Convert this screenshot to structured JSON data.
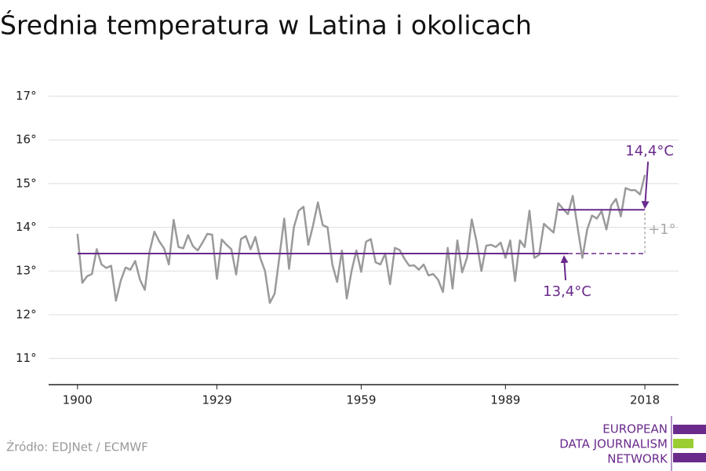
{
  "chart_data": {
    "type": "line",
    "title": "Średnia temperatura w Latina i okolicach",
    "x": [
      1900,
      1901,
      1902,
      1903,
      1904,
      1905,
      1906,
      1907,
      1908,
      1909,
      1910,
      1911,
      1912,
      1913,
      1914,
      1915,
      1916,
      1917,
      1918,
      1919,
      1920,
      1921,
      1922,
      1923,
      1924,
      1925,
      1926,
      1927,
      1928,
      1929,
      1930,
      1931,
      1932,
      1933,
      1934,
      1935,
      1936,
      1937,
      1938,
      1939,
      1940,
      1941,
      1942,
      1943,
      1944,
      1945,
      1946,
      1947,
      1948,
      1949,
      1950,
      1951,
      1952,
      1953,
      1954,
      1955,
      1956,
      1957,
      1958,
      1959,
      1960,
      1961,
      1962,
      1963,
      1964,
      1965,
      1966,
      1967,
      1968,
      1969,
      1970,
      1971,
      1972,
      1973,
      1974,
      1975,
      1976,
      1977,
      1978,
      1979,
      1980,
      1981,
      1982,
      1983,
      1984,
      1985,
      1986,
      1987,
      1988,
      1989,
      1990,
      1991,
      1992,
      1993,
      1994,
      1995,
      1996,
      1997,
      1998,
      1999,
      2000,
      2001,
      2002,
      2003,
      2004,
      2005,
      2006,
      2007,
      2008,
      2009,
      2010,
      2011,
      2012,
      2013,
      2014,
      2015,
      2016,
      2017,
      2018
    ],
    "series": [
      {
        "color": "#9a9a9a",
        "values": [
          13.85,
          12.73,
          12.88,
          12.93,
          13.5,
          13.15,
          13.07,
          13.12,
          12.32,
          12.78,
          13.08,
          13.03,
          13.23,
          12.8,
          12.57,
          13.45,
          13.9,
          13.68,
          13.52,
          13.15,
          14.17,
          13.55,
          13.52,
          13.82,
          13.57,
          13.47,
          13.65,
          13.85,
          13.83,
          12.82,
          13.72,
          13.6,
          13.5,
          12.92,
          13.73,
          13.8,
          13.5,
          13.78,
          13.3,
          13.0,
          12.27,
          12.48,
          13.33,
          14.2,
          13.05,
          14.0,
          14.38,
          14.47,
          13.6,
          14.05,
          14.57,
          14.05,
          14.0,
          13.15,
          12.75,
          13.47,
          12.37,
          13.0,
          13.47,
          12.98,
          13.67,
          13.73,
          13.2,
          13.15,
          13.4,
          12.7,
          13.53,
          13.48,
          13.28,
          13.12,
          13.13,
          13.03,
          13.15,
          12.9,
          12.93,
          12.8,
          12.52,
          13.53,
          12.6,
          13.7,
          12.97,
          13.3,
          14.18,
          13.67,
          13.0,
          13.58,
          13.6,
          13.55,
          13.65,
          13.3,
          13.7,
          12.77,
          13.7,
          13.55,
          14.38,
          13.3,
          13.37,
          14.08,
          13.98,
          13.88,
          14.55,
          14.42,
          14.3,
          14.72,
          14.0,
          13.3,
          13.95,
          14.27,
          14.2,
          14.37,
          13.95,
          14.5,
          14.65,
          14.25,
          14.9,
          14.85,
          14.85,
          14.75,
          15.2
        ]
      }
    ],
    "reference_lines": [
      {
        "value": 13.4,
        "from": 1900,
        "to": 2002,
        "dashed_to": 2018,
        "color": "#6a2a8c",
        "label": "13,4°C"
      },
      {
        "value": 14.4,
        "from": 2000,
        "to": 2018,
        "color": "#6a2a8c",
        "label": "14,4°C"
      }
    ],
    "difference_label": "+1°",
    "xlim": [
      1894,
      2025
    ],
    "xticks": [
      1900,
      1929,
      1959,
      1989,
      2018
    ],
    "ylim": [
      10.4,
      17.2
    ],
    "yticks": [
      {
        "value": 11,
        "label": "11°"
      },
      {
        "value": 12,
        "label": "12°"
      },
      {
        "value": 13,
        "label": "13°"
      },
      {
        "value": 14,
        "label": "14°"
      },
      {
        "value": 15,
        "label": "15°"
      },
      {
        "value": 16,
        "label": "16°"
      },
      {
        "value": 17,
        "label": "17°"
      }
    ],
    "grid": true
  },
  "footer": {
    "source": "Źródło: EDJNet / ECMWF",
    "logo": [
      "EUROPEAN",
      "DATA JOURNALISM",
      "NETWORK"
    ]
  }
}
